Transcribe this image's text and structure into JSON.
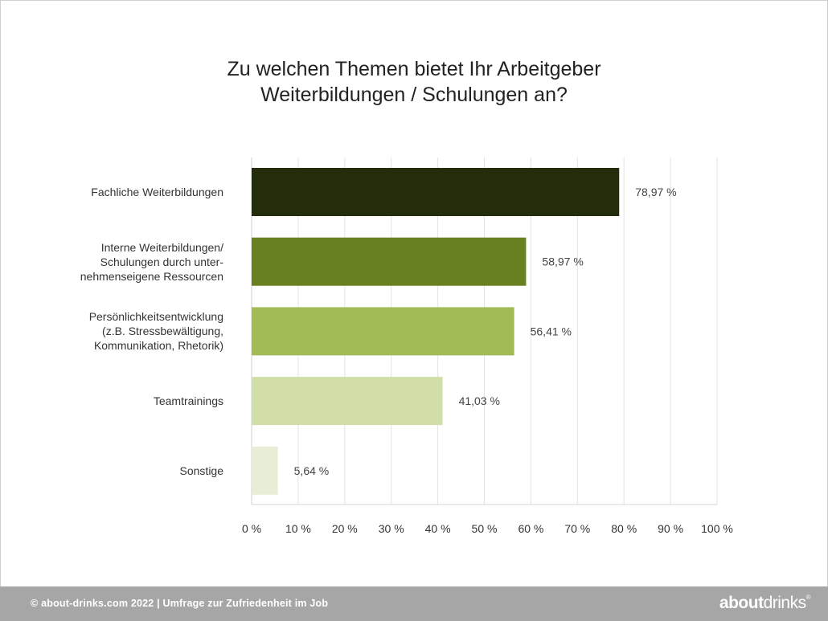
{
  "title_line1": "Zu welchen Themen bietet Ihr Arbeitgeber",
  "title_line2": "Weiterbildungen / Schulungen an?",
  "footer": "© about-drinks.com 2022  |  Umfrage zur Zufriedenheit im Job",
  "brand": {
    "bold": "about",
    "regular": "drinks",
    "mark": "®"
  },
  "chart_data": {
    "type": "bar",
    "orientation": "horizontal",
    "categories": [
      "Fachliche Weiterbildungen",
      "Interne Weiterbildungen/\nSchulungen durch unter-\nnehmenseigene Ressourcen",
      "Persönlichkeitsentwicklung\n(z.B. Stressbewältigung,\nKommunikation, Rhetorik)",
      "Teamtrainings",
      "Sonstige"
    ],
    "values": [
      78.97,
      58.97,
      56.41,
      41.03,
      5.64
    ],
    "value_labels": [
      "78,97 %",
      "58,97 %",
      "56,41 %",
      "41,03 %",
      "5,64 %"
    ],
    "colors": [
      "#232d0b",
      "#68801f",
      "#a3bb54",
      "#d2dea8",
      "#e8eed5"
    ],
    "xlim": [
      0,
      100
    ],
    "xticks": [
      "0 %",
      "10 %",
      "20 %",
      "30 %",
      "40 %",
      "50 %",
      "60 %",
      "70 %",
      "80 %",
      "90 %",
      "100 %"
    ],
    "grid": true
  }
}
